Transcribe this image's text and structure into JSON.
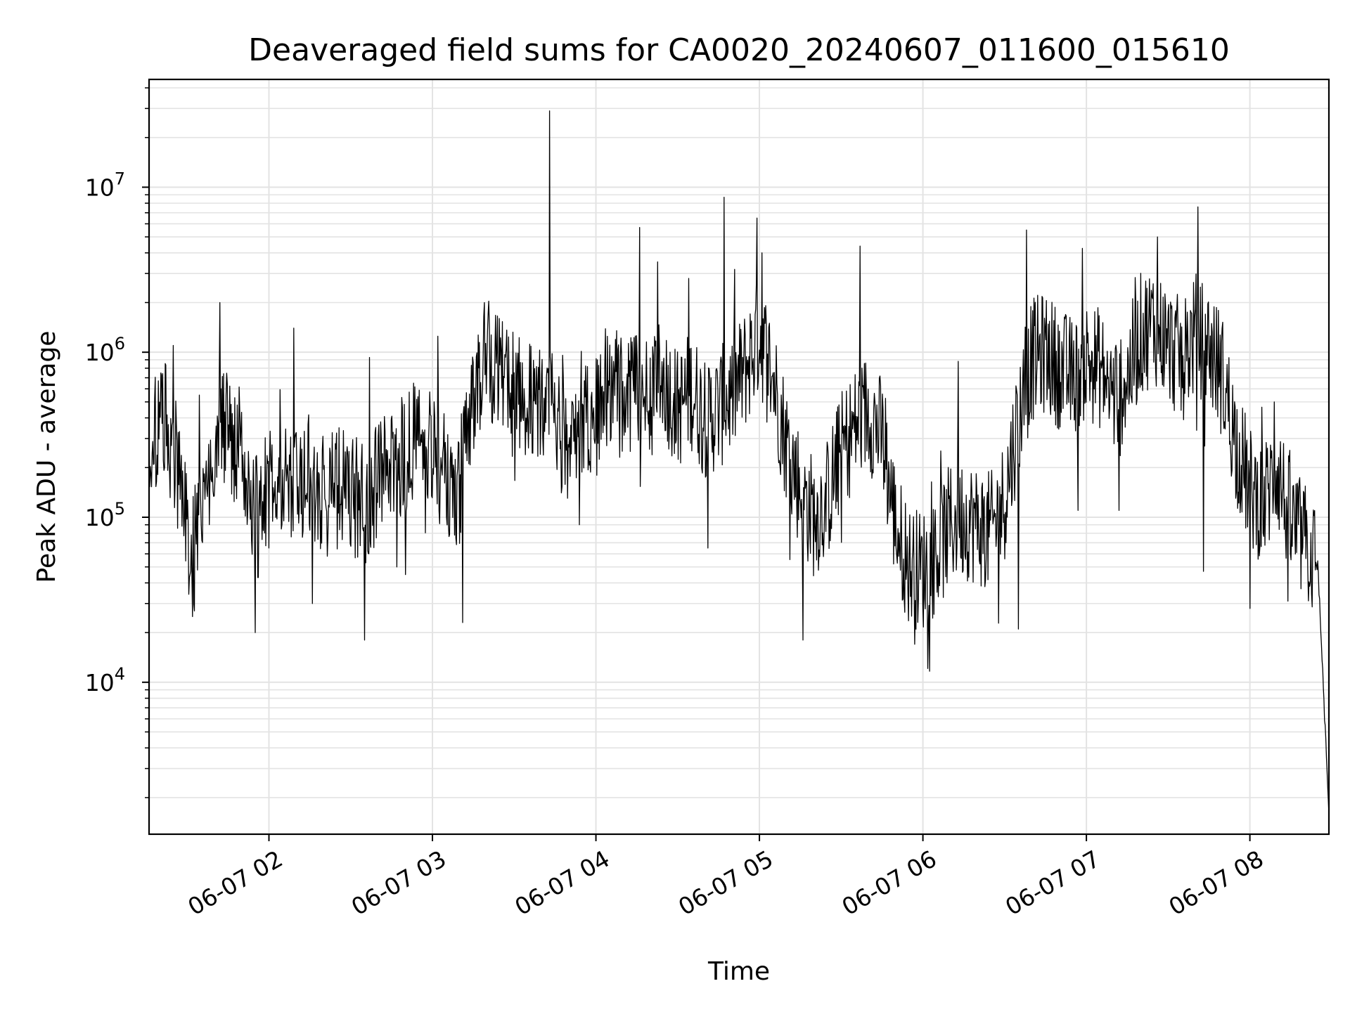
{
  "chart_data": {
    "type": "line",
    "title": "Deaveraged field sums for CA0020_20240607_011600_015610",
    "xlabel": "Time",
    "ylabel": "Peak ADU - average",
    "yscale": "log",
    "ylim": [
      1200,
      45000000
    ],
    "xlim": [
      "06-07 01:16",
      "06-07 08:29"
    ],
    "grid": true,
    "grid_minor": true,
    "line_color": "#000000",
    "grid_color": "#e3e3e3",
    "x_ticks": [
      "06-07 02",
      "06-07 03",
      "06-07 04",
      "06-07 05",
      "06-07 06",
      "06-07 07",
      "06-07 08"
    ],
    "y_ticks": [
      {
        "base": "10",
        "exp": "4",
        "value": 10000
      },
      {
        "base": "10",
        "exp": "5",
        "value": 100000
      },
      {
        "base": "10",
        "exp": "6",
        "value": 1000000
      },
      {
        "base": "10",
        "exp": "7",
        "value": 10000000
      }
    ],
    "series": [
      {
        "points": [
          [
            "06-07 01:16",
            300000
          ],
          [
            "06-07 01:22",
            380000
          ],
          [
            "06-07 01:28",
            160000
          ],
          [
            "06-07 01:32",
            55000
          ],
          [
            "06-07 01:36",
            130000
          ],
          [
            "06-07 01:40",
            300000
          ],
          [
            "06-07 01:44",
            350000
          ],
          [
            "06-07 01:48",
            220000
          ],
          [
            "06-07 01:52",
            180000
          ],
          [
            "06-07 01:56",
            100000
          ],
          [
            "06-07 02:00",
            150000
          ],
          [
            "06-07 02:05",
            190000
          ],
          [
            "06-07 02:10",
            160000
          ],
          [
            "06-07 02:15",
            180000
          ],
          [
            "06-07 02:20",
            130000
          ],
          [
            "06-07 02:25",
            150000
          ],
          [
            "06-07 02:30",
            140000
          ],
          [
            "06-07 02:35",
            120000
          ],
          [
            "06-07 02:40",
            160000
          ],
          [
            "06-07 02:45",
            200000
          ],
          [
            "06-07 02:50",
            240000
          ],
          [
            "06-07 02:55",
            330000
          ],
          [
            "06-07 03:00",
            250000
          ],
          [
            "06-07 03:05",
            140000
          ],
          [
            "06-07 03:10",
            160000
          ],
          [
            "06-07 03:15",
            600000
          ],
          [
            "06-07 03:20",
            900000
          ],
          [
            "06-07 03:25",
            700000
          ],
          [
            "06-07 03:30",
            600000
          ],
          [
            "06-07 03:35",
            550000
          ],
          [
            "06-07 03:40",
            450000
          ],
          [
            "06-07 03:45",
            330000
          ],
          [
            "06-07 03:50",
            300000
          ],
          [
            "06-07 03:55",
            450000
          ],
          [
            "06-07 04:00",
            400000
          ],
          [
            "06-07 04:05",
            700000
          ],
          [
            "06-07 04:10",
            500000
          ],
          [
            "06-07 04:15",
            600000
          ],
          [
            "06-07 04:20",
            550000
          ],
          [
            "06-07 04:25",
            700000
          ],
          [
            "06-07 04:30",
            450000
          ],
          [
            "06-07 04:35",
            600000
          ],
          [
            "06-07 04:40",
            400000
          ],
          [
            "06-07 04:45",
            450000
          ],
          [
            "06-07 04:50",
            550000
          ],
          [
            "06-07 04:55",
            800000
          ],
          [
            "06-07 05:00",
            1300000
          ],
          [
            "06-07 05:05",
            700000
          ],
          [
            "06-07 05:10",
            280000
          ],
          [
            "06-07 05:15",
            150000
          ],
          [
            "06-07 05:20",
            100000
          ],
          [
            "06-07 05:25",
            130000
          ],
          [
            "06-07 05:30",
            250000
          ],
          [
            "06-07 05:35",
            350000
          ],
          [
            "06-07 05:40",
            450000
          ],
          [
            "06-07 05:45",
            300000
          ],
          [
            "06-07 05:50",
            90000
          ],
          [
            "06-07 05:55",
            50000
          ],
          [
            "06-07 06:00",
            48000
          ],
          [
            "06-07 06:05",
            60000
          ],
          [
            "06-07 06:10",
            90000
          ],
          [
            "06-07 06:15",
            100000
          ],
          [
            "06-07 06:20",
            90000
          ],
          [
            "06-07 06:25",
            80000
          ],
          [
            "06-07 06:30",
            130000
          ],
          [
            "06-07 06:35",
            400000
          ],
          [
            "06-07 06:40",
            900000
          ],
          [
            "06-07 06:45",
            1000000
          ],
          [
            "06-07 06:50",
            800000
          ],
          [
            "06-07 06:55",
            700000
          ],
          [
            "06-07 07:00",
            900000
          ],
          [
            "06-07 07:05",
            800000
          ],
          [
            "06-07 07:10",
            550000
          ],
          [
            "06-07 07:15",
            700000
          ],
          [
            "06-07 07:20",
            1300000
          ],
          [
            "06-07 07:25",
            1500000
          ],
          [
            "06-07 07:30",
            1100000
          ],
          [
            "06-07 07:35",
            900000
          ],
          [
            "06-07 07:40",
            1300000
          ],
          [
            "06-07 07:45",
            1100000
          ],
          [
            "06-07 07:50",
            700000
          ],
          [
            "06-07 07:55",
            280000
          ],
          [
            "06-07 08:00",
            150000
          ],
          [
            "06-07 08:05",
            120000
          ],
          [
            "06-07 08:10",
            200000
          ],
          [
            "06-07 08:15",
            90000
          ],
          [
            "06-07 08:20",
            70000
          ],
          [
            "06-07 08:25",
            50000
          ],
          [
            "06-07 08:29",
            1600
          ]
        ],
        "spikes": [
          [
            "06-07 01:25",
            1100000
          ],
          [
            "06-07 01:32",
            25000
          ],
          [
            "06-07 01:42",
            2000000
          ],
          [
            "06-07 01:55",
            20000
          ],
          [
            "06-07 02:09",
            1400000
          ],
          [
            "06-07 02:16",
            30000
          ],
          [
            "06-07 02:35",
            18000
          ],
          [
            "06-07 02:37",
            930000
          ],
          [
            "06-07 02:47",
            50000
          ],
          [
            "06-07 03:02",
            1250000
          ],
          [
            "06-07 03:11",
            23000
          ],
          [
            "06-07 03:19",
            2000000
          ],
          [
            "06-07 03:43",
            29000000
          ],
          [
            "06-07 03:54",
            90000
          ],
          [
            "06-07 04:16",
            5700000
          ],
          [
            "06-07 04:34",
            2800000
          ],
          [
            "06-07 04:41",
            65000
          ],
          [
            "06-07 04:47",
            8700000
          ],
          [
            "06-07 04:59",
            6500000
          ],
          [
            "06-07 05:01",
            4000000
          ],
          [
            "06-07 05:16",
            18000
          ],
          [
            "06-07 05:37",
            4400000
          ],
          [
            "06-07 05:57",
            17000
          ],
          [
            "06-07 06:13",
            880000
          ],
          [
            "06-07 06:35",
            21000
          ],
          [
            "06-07 06:38",
            5500000
          ],
          [
            "06-07 06:57",
            110000
          ],
          [
            "06-07 07:12",
            110000
          ],
          [
            "06-07 07:26",
            5000000
          ],
          [
            "06-07 07:41",
            7600000
          ],
          [
            "06-07 07:43",
            47000
          ],
          [
            "06-07 08:00",
            28000
          ],
          [
            "06-07 08:09",
            500000
          ],
          [
            "06-07 08:14",
            31000
          ]
        ]
      }
    ]
  }
}
